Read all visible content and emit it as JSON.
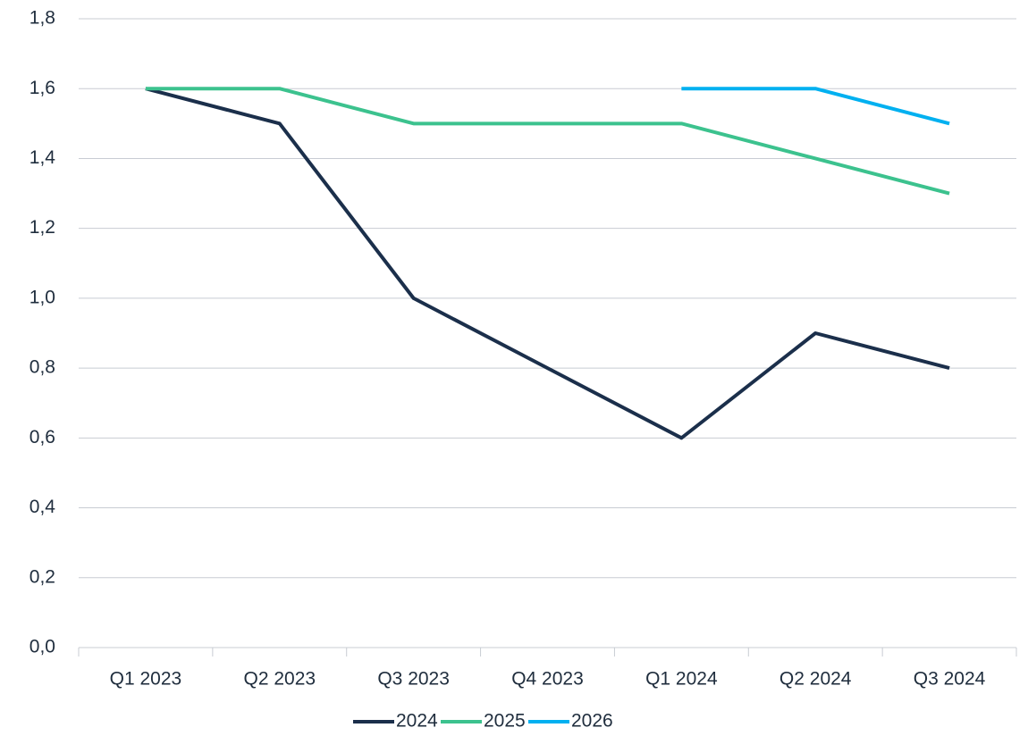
{
  "chart_data": {
    "type": "line",
    "categories": [
      "Q1 2023",
      "Q2 2023",
      "Q3 2023",
      "Q4 2023",
      "Q1 2024",
      "Q2 2024",
      "Q3 2024"
    ],
    "series": [
      {
        "name": "2024",
        "color": "#1b2f4b",
        "values": [
          1.6,
          1.5,
          1.0,
          0.8,
          0.6,
          0.9,
          0.8
        ]
      },
      {
        "name": "2025",
        "color": "#3cc28e",
        "values": [
          1.6,
          1.6,
          1.5,
          1.5,
          1.5,
          1.4,
          1.3
        ]
      },
      {
        "name": "2026",
        "color": "#00b0f0",
        "values": [
          null,
          null,
          null,
          null,
          1.6,
          1.6,
          1.5
        ]
      }
    ],
    "ylim": [
      0,
      1.8
    ],
    "yticks": [
      {
        "value": 0,
        "label": "0,0"
      },
      {
        "value": 0.2,
        "label": "0,2"
      },
      {
        "value": 0.4,
        "label": "0,4"
      },
      {
        "value": 0.6,
        "label": "0,6"
      },
      {
        "value": 0.8,
        "label": "0,8"
      },
      {
        "value": 1.0,
        "label": "1,0"
      },
      {
        "value": 1.2,
        "label": "1,2"
      },
      {
        "value": 1.4,
        "label": "1,4"
      },
      {
        "value": 1.6,
        "label": "1,6"
      },
      {
        "value": 1.8,
        "label": "1,8"
      }
    ],
    "grid": true,
    "legend": "bottom"
  }
}
